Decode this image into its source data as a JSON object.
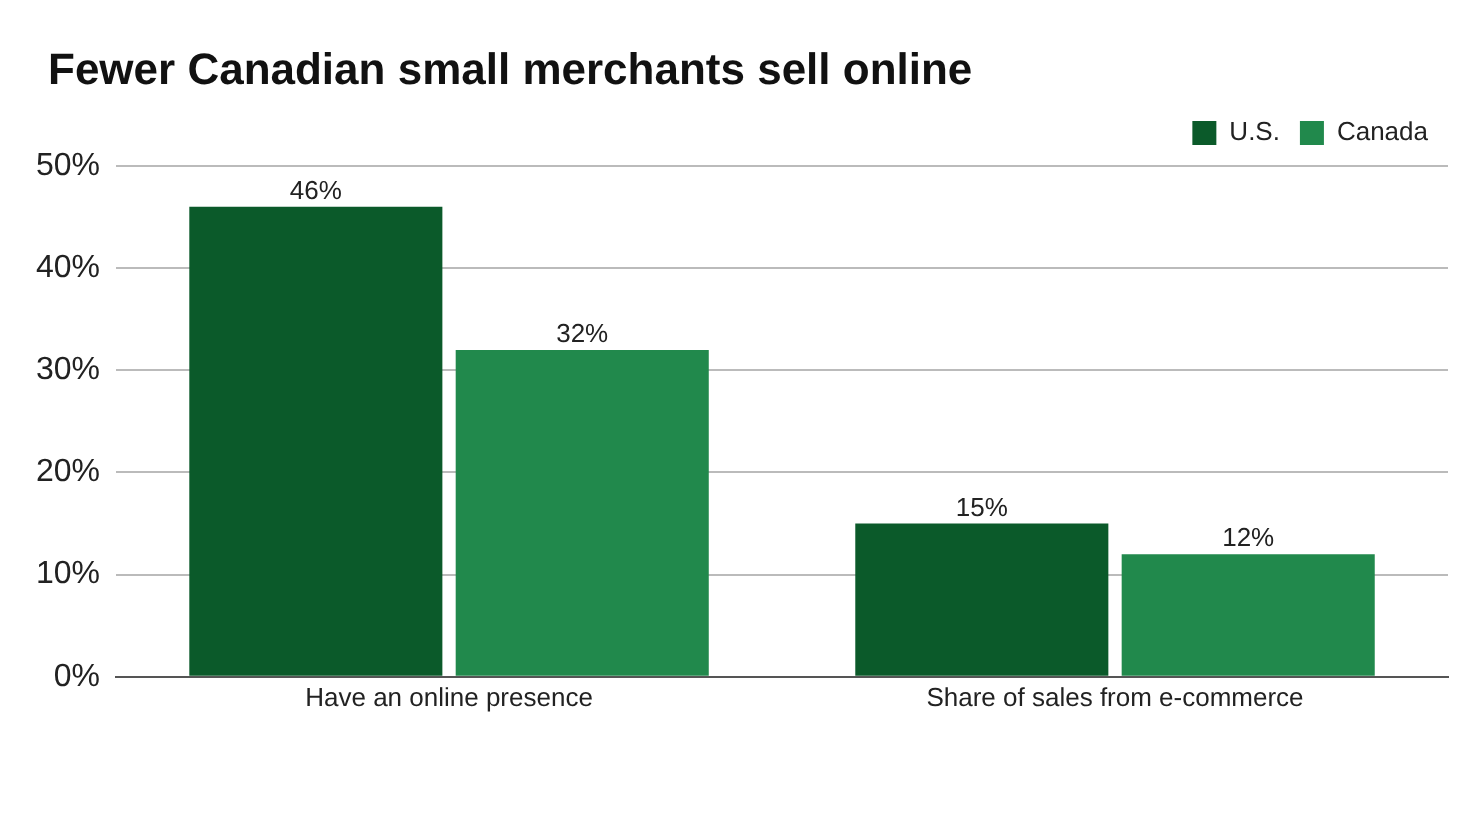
{
  "chart_data": {
    "type": "bar",
    "title": "Fewer Canadian small merchants sell online",
    "categories": [
      "Have an online presence",
      "Share of sales from e-commerce"
    ],
    "series": [
      {
        "name": "U.S.",
        "color": "#0b5a2a",
        "values": [
          46,
          15
        ],
        "value_labels": [
          "46%",
          "15%"
        ]
      },
      {
        "name": "Canada",
        "color": "#21894c",
        "values": [
          32,
          12
        ],
        "value_labels": [
          "32%",
          "12%"
        ]
      }
    ],
    "ylim": [
      0,
      50
    ],
    "yticks": [
      {
        "value": 0,
        "label": "0%"
      },
      {
        "value": 10,
        "label": "10%"
      },
      {
        "value": 20,
        "label": "20%"
      },
      {
        "value": 30,
        "label": "30%"
      },
      {
        "value": 40,
        "label": "40%"
      },
      {
        "value": 50,
        "label": "50%"
      }
    ],
    "grid": "y",
    "legend": "top right"
  }
}
